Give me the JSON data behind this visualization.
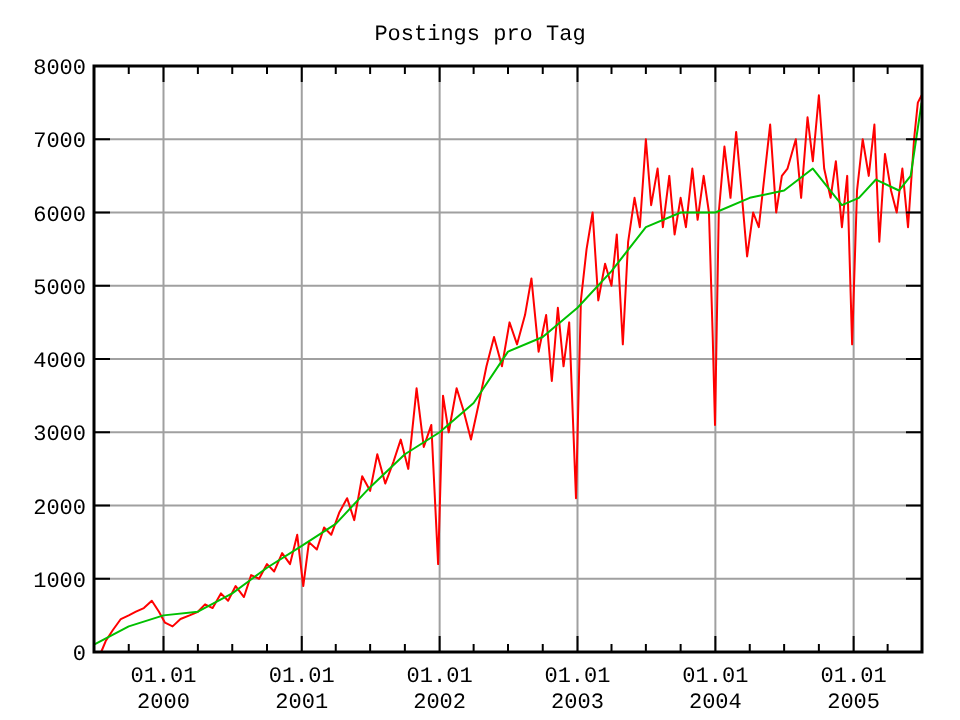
{
  "chart_data": {
    "type": "line",
    "title": "Postings pro Tag",
    "xlim": [
      "1999-07-01",
      "2005-07-01"
    ],
    "xticks": [
      {
        "value": "1999-10-01",
        "label": null
      },
      {
        "value": "2000-01-01",
        "label": "01.01\n2000"
      },
      {
        "value": "2000-04-01",
        "label": null
      },
      {
        "value": "2000-07-01",
        "label": null
      },
      {
        "value": "2000-10-01",
        "label": null
      },
      {
        "value": "2001-01-01",
        "label": "01.01\n2001"
      },
      {
        "value": "2001-04-01",
        "label": null
      },
      {
        "value": "2001-07-01",
        "label": null
      },
      {
        "value": "2001-10-01",
        "label": null
      },
      {
        "value": "2002-01-01",
        "label": "01.01\n2002"
      },
      {
        "value": "2002-04-01",
        "label": null
      },
      {
        "value": "2002-07-01",
        "label": null
      },
      {
        "value": "2002-10-01",
        "label": null
      },
      {
        "value": "2003-01-01",
        "label": "01.01\n2003"
      },
      {
        "value": "2003-04-01",
        "label": null
      },
      {
        "value": "2003-07-01",
        "label": null
      },
      {
        "value": "2003-10-01",
        "label": null
      },
      {
        "value": "2004-01-01",
        "label": "01.01\n2004"
      },
      {
        "value": "2004-04-01",
        "label": null
      },
      {
        "value": "2004-07-01",
        "label": null
      },
      {
        "value": "2004-10-01",
        "label": null
      },
      {
        "value": "2005-01-01",
        "label": "01.01\n2005"
      },
      {
        "value": "2005-04-01",
        "label": null
      }
    ],
    "ylim": [
      0,
      8000
    ],
    "yticks": [
      0,
      1000,
      2000,
      3000,
      4000,
      5000,
      6000,
      7000,
      8000
    ],
    "grid": true,
    "marker": "none",
    "line_style": "solid",
    "series": [
      {
        "color": "#ff0000",
        "x": [
          "1999-07-01",
          "1999-07-20",
          "1999-08-01",
          "1999-08-20",
          "1999-09-10",
          "1999-10-01",
          "1999-10-20",
          "1999-11-10",
          "1999-12-01",
          "1999-12-20",
          "2000-01-05",
          "2000-01-25",
          "2000-02-15",
          "2000-03-10",
          "2000-04-01",
          "2000-04-20",
          "2000-05-10",
          "2000-06-01",
          "2000-06-20",
          "2000-07-10",
          "2000-08-01",
          "2000-08-20",
          "2000-09-10",
          "2000-10-01",
          "2000-10-20",
          "2000-11-10",
          "2000-12-01",
          "2000-12-20",
          "2001-01-05",
          "2001-01-20",
          "2001-02-10",
          "2001-03-01",
          "2001-03-20",
          "2001-04-10",
          "2001-05-01",
          "2001-05-20",
          "2001-06-10",
          "2001-07-01",
          "2001-07-20",
          "2001-08-10",
          "2001-09-01",
          "2001-09-20",
          "2001-10-10",
          "2001-11-01",
          "2001-11-20",
          "2001-12-10",
          "2001-12-28",
          "2002-01-10",
          "2002-01-25",
          "2002-02-15",
          "2002-03-05",
          "2002-03-25",
          "2002-04-15",
          "2002-05-05",
          "2002-05-25",
          "2002-06-15",
          "2002-07-05",
          "2002-07-25",
          "2002-08-15",
          "2002-09-01",
          "2002-09-20",
          "2002-10-10",
          "2002-10-25",
          "2002-11-10",
          "2002-11-25",
          "2002-12-10",
          "2002-12-28",
          "2003-01-10",
          "2003-01-25",
          "2003-02-10",
          "2003-02-25",
          "2003-03-15",
          "2003-04-01",
          "2003-04-15",
          "2003-05-01",
          "2003-05-15",
          "2003-06-01",
          "2003-06-15",
          "2003-07-01",
          "2003-07-15",
          "2003-08-01",
          "2003-08-15",
          "2003-09-01",
          "2003-09-15",
          "2003-10-01",
          "2003-10-15",
          "2003-11-01",
          "2003-11-15",
          "2003-12-01",
          "2003-12-15",
          "2003-12-25",
          "2003-12-31",
          "2004-01-10",
          "2004-01-25",
          "2004-02-10",
          "2004-02-25",
          "2004-03-10",
          "2004-03-25",
          "2004-04-10",
          "2004-04-25",
          "2004-05-10",
          "2004-05-25",
          "2004-06-10",
          "2004-06-25",
          "2004-07-10",
          "2004-08-01",
          "2004-08-15",
          "2004-09-01",
          "2004-09-15",
          "2004-10-01",
          "2004-10-15",
          "2004-11-01",
          "2004-11-15",
          "2004-12-01",
          "2004-12-15",
          "2004-12-28",
          "2005-01-10",
          "2005-01-25",
          "2005-02-10",
          "2005-02-25",
          "2005-03-10",
          "2005-03-25",
          "2005-04-10",
          "2005-04-25",
          "2005-05-10",
          "2005-05-25",
          "2005-06-10",
          "2005-06-20",
          "2005-06-30"
        ],
        "values": [
          0,
          0,
          150,
          300,
          450,
          500,
          550,
          600,
          700,
          550,
          400,
          350,
          450,
          500,
          550,
          650,
          600,
          800,
          700,
          900,
          750,
          1050,
          1000,
          1200,
          1100,
          1350,
          1200,
          1600,
          900,
          1500,
          1400,
          1700,
          1600,
          1900,
          2100,
          1800,
          2400,
          2200,
          2700,
          2300,
          2600,
          2900,
          2500,
          3600,
          2800,
          3100,
          1200,
          3500,
          3000,
          3600,
          3300,
          2900,
          3400,
          3900,
          4300,
          3900,
          4500,
          4200,
          4600,
          5100,
          4100,
          4600,
          3700,
          4700,
          3900,
          4500,
          2100,
          4800,
          5500,
          6000,
          4800,
          5300,
          5000,
          5700,
          4200,
          5600,
          6200,
          5800,
          7000,
          6100,
          6600,
          5800,
          6500,
          5700,
          6200,
          5800,
          6600,
          5900,
          6500,
          6000,
          4300,
          3100,
          6000,
          6900,
          6200,
          7100,
          6300,
          5400,
          6000,
          5800,
          6500,
          7200,
          6000,
          6500,
          6600,
          7000,
          6200,
          7300,
          6700,
          7600,
          6600,
          6200,
          6700,
          5800,
          6500,
          4200,
          6300,
          7000,
          6500,
          7200,
          5600,
          6800,
          6300,
          6000,
          6600,
          5800,
          7000,
          7500,
          7600
        ]
      },
      {
        "color": "#00c000",
        "x": [
          "1999-07-01",
          "1999-10-01",
          "2000-01-01",
          "2000-04-01",
          "2000-07-01",
          "2000-10-01",
          "2001-01-01",
          "2001-04-01",
          "2001-07-01",
          "2001-10-01",
          "2002-01-01",
          "2002-04-01",
          "2002-07-01",
          "2002-10-01",
          "2003-01-01",
          "2003-04-01",
          "2003-07-01",
          "2003-10-01",
          "2004-01-01",
          "2004-04-01",
          "2004-07-01",
          "2004-09-15",
          "2004-12-01",
          "2005-01-15",
          "2005-03-01",
          "2005-05-01",
          "2005-06-01",
          "2005-06-30"
        ],
        "values": [
          100,
          350,
          500,
          550,
          800,
          1150,
          1450,
          1750,
          2250,
          2700,
          3000,
          3400,
          4100,
          4300,
          4700,
          5200,
          5800,
          6000,
          6000,
          6200,
          6300,
          6600,
          6100,
          6200,
          6450,
          6300,
          6500,
          7500
        ]
      }
    ]
  }
}
